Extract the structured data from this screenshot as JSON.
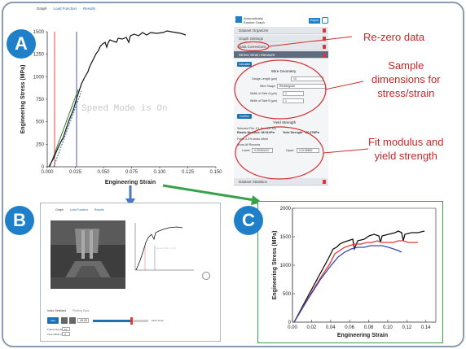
{
  "panelA": {
    "badge": "A",
    "tabs": [
      "Graph",
      "Load Function",
      "Results"
    ],
    "chart": {
      "ylabel": "Engineering Stress (MPa)",
      "xlabel": "Engineering Strain",
      "watermark": "Speed Mode is On",
      "yticks": [
        "0",
        "250",
        "500",
        "750",
        "1000",
        "1250",
        "1500"
      ],
      "xticks": [
        "0.000",
        "0.025",
        "0.050",
        "0.075",
        "0.100",
        "0.125",
        "0.150"
      ]
    },
    "sidebar": {
      "app_line1": "Automatically",
      "app_line2": "Explore Graph",
      "export_label": "Export",
      "sections": [
        "Dataset Organizer",
        "Graph Settings",
        "Data Corrections",
        "Stress Strain Measure"
      ],
      "calc_button": "Calculate",
      "wire_geometry": "Wire Geometry",
      "gauge_length_label": "Gauge Length (μm)",
      "gauge_length_value": "10",
      "wire_shape_label": "Wire Shape",
      "wire_shape_value": "Rectangular",
      "width_a_label": "Width of Side A (μm)",
      "width_a_value": "1",
      "width_b_label": "Width of Side B (μm)",
      "width_b_value": "1",
      "yield_button": "Confirm",
      "yield_heading": "Yield Strength",
      "selected_file": "Selected File: 0.1 (tension 1b)",
      "elastic_modulus": "Elastic Modulus: 38.91GPa",
      "yield_strength": "Yield Strength: 780.37MPa",
      "force_offset": "Force 0.2% strain offset",
      "show_all": "Show All Records",
      "lower_label": "Lower",
      "lower_value": "0.00254437",
      "upper_label": "Upper",
      "upper_value": "0.0138882",
      "footer_section": "Dataset Statistics"
    }
  },
  "callouts": {
    "rezero": "Re-zero data",
    "sample": [
      "Sample",
      "dimensions for",
      "stress/strain"
    ],
    "fit": [
      "Fit modulus and",
      "yield strength"
    ]
  },
  "panelB": {
    "badge": "B",
    "tabs": [
      "Graph",
      "Load Function",
      "Results"
    ],
    "bottom_tabs": [
      "Index Selected",
      "Plotting Data"
    ],
    "play_button": "Start Video",
    "frame_value": "45.28",
    "counter": "1371.72 ks",
    "frame_rate_label": "Frame Number",
    "frame_rate_value": "10",
    "time_offset_label": "Time Offset (s)",
    "time_offset_value": "0"
  },
  "panelC": {
    "badge": "C",
    "ylabel": "Engineering Stress (MPa)",
    "xlabel": "Engineering Strain",
    "yticks": [
      "0",
      "500",
      "1000",
      "1500",
      "2000"
    ],
    "xticks": [
      "0.00",
      "0.02",
      "0.04",
      "0.06",
      "0.08",
      "0.10",
      "0.12",
      "0.14"
    ]
  },
  "colors": {
    "accent": "#1f7fc8",
    "callout": "#c62828",
    "green_arrow": "#3aa14b",
    "blue_arrow": "#4a78c2"
  }
}
